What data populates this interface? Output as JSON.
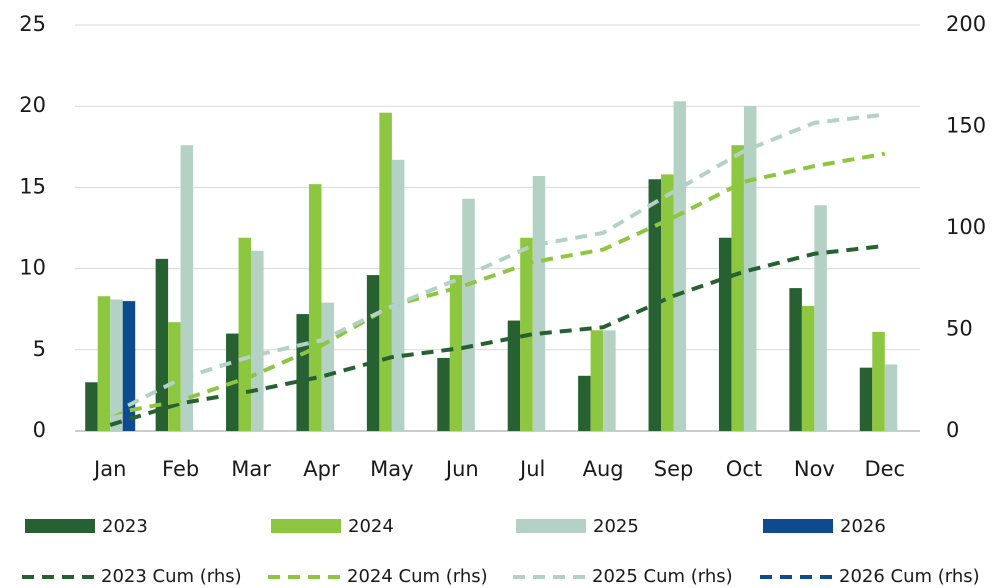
{
  "chart_data": {
    "type": "bar",
    "categories": [
      "Jan",
      "Feb",
      "Mar",
      "Apr",
      "May",
      "Jun",
      "Jul",
      "Aug",
      "Sep",
      "Oct",
      "Nov",
      "Dec"
    ],
    "ylim": [
      0,
      25
    ],
    "yticks": [
      0,
      5,
      10,
      15,
      20,
      25
    ],
    "y2lim": [
      0,
      200
    ],
    "y2ticks": [
      0,
      50,
      100,
      150,
      200
    ],
    "grid": true,
    "series": [
      {
        "name": "2023",
        "type": "bar",
        "color": "#276132",
        "values": [
          3.0,
          10.6,
          6.0,
          7.2,
          9.6,
          4.5,
          6.8,
          3.4,
          15.5,
          11.9,
          8.8,
          3.9
        ]
      },
      {
        "name": "2024",
        "type": "bar",
        "color": "#8dc63f",
        "values": [
          8.3,
          6.7,
          11.9,
          15.2,
          19.6,
          9.6,
          11.9,
          6.2,
          15.8,
          17.6,
          7.7,
          6.1
        ]
      },
      {
        "name": "2025",
        "type": "bar",
        "color": "#b3d1c5",
        "values": [
          8.1,
          17.6,
          11.1,
          7.9,
          16.7,
          14.3,
          15.7,
          6.2,
          20.3,
          20.0,
          13.9,
          4.1
        ]
      },
      {
        "name": "2026",
        "type": "bar",
        "color": "#0e4a8f",
        "values": [
          8.0,
          null,
          null,
          null,
          null,
          null,
          null,
          null,
          null,
          null,
          null,
          null
        ]
      },
      {
        "name": "2023 Cum (rhs)",
        "type": "line",
        "axis": "y2",
        "color": "#276132",
        "values": [
          3.0,
          13.6,
          19.6,
          26.8,
          36.4,
          40.9,
          47.7,
          51.1,
          66.6,
          78.5,
          87.3,
          91.2
        ]
      },
      {
        "name": "2024 Cum (rhs)",
        "type": "line",
        "axis": "y2",
        "color": "#8dc63f",
        "values": [
          8.3,
          15.0,
          26.9,
          42.1,
          61.7,
          71.3,
          83.2,
          89.4,
          105.2,
          122.8,
          130.5,
          136.6
        ]
      },
      {
        "name": "2025 Cum (rhs)",
        "type": "line",
        "axis": "y2",
        "color": "#b3d1c5",
        "values": [
          8.1,
          25.7,
          36.8,
          44.7,
          61.4,
          75.7,
          91.4,
          97.6,
          117.9,
          137.9,
          151.8,
          155.9
        ]
      },
      {
        "name": "2026 Cum (rhs)",
        "type": "line",
        "axis": "y2",
        "color": "#0e4a8f",
        "values": [
          8.0,
          null,
          null,
          null,
          null,
          null,
          null,
          null,
          null,
          null,
          null,
          null
        ]
      }
    ]
  }
}
